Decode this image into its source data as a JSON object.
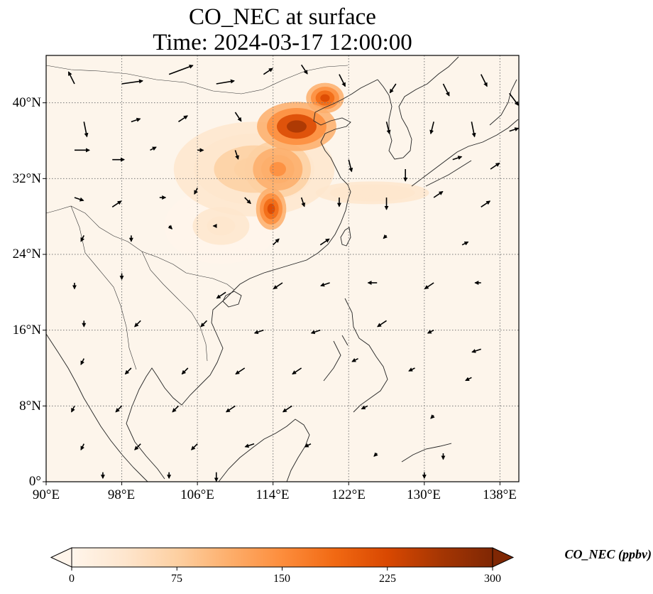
{
  "title": {
    "line1": "CO_NEC at surface",
    "line2": "Time: 2024-03-17 12:00:00"
  },
  "map": {
    "extent": {
      "lon_min": 90,
      "lon_max": 140,
      "lat_min": 0,
      "lat_max": 45
    },
    "gridlines": true,
    "y_ticks": [
      {
        "value": 0,
        "label": "0°"
      },
      {
        "value": 8,
        "label": "8°N"
      },
      {
        "value": 16,
        "label": "16°N"
      },
      {
        "value": 24,
        "label": "24°N"
      },
      {
        "value": 32,
        "label": "32°N"
      },
      {
        "value": 40,
        "label": "40°N"
      }
    ],
    "x_ticks": [
      {
        "value": 90,
        "label": "90°E"
      },
      {
        "value": 98,
        "label": "98°E"
      },
      {
        "value": 106,
        "label": "106°E"
      },
      {
        "value": 114,
        "label": "114°E"
      },
      {
        "value": 122,
        "label": "122°E"
      },
      {
        "value": 130,
        "label": "130°E"
      },
      {
        "value": 138,
        "label": "138°E"
      }
    ],
    "plumes": [
      {
        "lon": 116.5,
        "lat": 37.5,
        "value": 260,
        "rlon": 4.2,
        "rlat": 2.6
      },
      {
        "lon": 119.5,
        "lat": 40.5,
        "value": 240,
        "rlon": 2.0,
        "rlat": 1.6
      },
      {
        "lon": 113.8,
        "lat": 28.8,
        "value": 230,
        "rlon": 1.6,
        "rlat": 2.2
      },
      {
        "lon": 114.5,
        "lat": 33.0,
        "value": 160,
        "rlon": 3.5,
        "rlat": 3.0
      },
      {
        "lon": 112.0,
        "lat": 33.0,
        "value": 70,
        "rlon": 8.5,
        "rlat": 5.0
      },
      {
        "lon": 124.5,
        "lat": 30.5,
        "value": 55,
        "rlon": 6.0,
        "rlat": 1.2
      },
      {
        "lon": 108.5,
        "lat": 27.0,
        "value": 25,
        "rlon": 6.0,
        "rlat": 4.0
      }
    ],
    "wind": [
      {
        "lon": 93,
        "lat": 42,
        "u": -2,
        "v": 4
      },
      {
        "lon": 98,
        "lat": 42,
        "u": 7,
        "v": 1
      },
      {
        "lon": 103,
        "lat": 43,
        "u": 8,
        "v": 3
      },
      {
        "lon": 108,
        "lat": 42,
        "u": 6,
        "v": 1
      },
      {
        "lon": 113,
        "lat": 43,
        "u": 3,
        "v": 2
      },
      {
        "lon": 117,
        "lat": 44,
        "u": 2,
        "v": -3
      },
      {
        "lon": 121,
        "lat": 43,
        "u": 2,
        "v": -4
      },
      {
        "lon": 127,
        "lat": 42,
        "u": -2,
        "v": -3
      },
      {
        "lon": 132,
        "lat": 42,
        "u": 2,
        "v": -4
      },
      {
        "lon": 136,
        "lat": 43,
        "u": 2,
        "v": -4
      },
      {
        "lon": 139,
        "lat": 41,
        "u": 3,
        "v": -4
      },
      {
        "lon": 94,
        "lat": 38,
        "u": 1,
        "v": -5
      },
      {
        "lon": 99,
        "lat": 38,
        "u": 3,
        "v": 1
      },
      {
        "lon": 104,
        "lat": 38,
        "u": 3,
        "v": 2
      },
      {
        "lon": 110,
        "lat": 39,
        "u": 2,
        "v": -3
      },
      {
        "lon": 126,
        "lat": 38,
        "u": 1,
        "v": -4
      },
      {
        "lon": 131,
        "lat": 38,
        "u": -1,
        "v": -4
      },
      {
        "lon": 135,
        "lat": 38,
        "u": 1,
        "v": -5
      },
      {
        "lon": 139,
        "lat": 37,
        "u": 3,
        "v": 1
      },
      {
        "lon": 93,
        "lat": 35,
        "u": 5,
        "v": 0
      },
      {
        "lon": 97,
        "lat": 34,
        "u": 4,
        "v": 0
      },
      {
        "lon": 101,
        "lat": 35,
        "u": 2,
        "v": 1
      },
      {
        "lon": 106,
        "lat": 35,
        "u": 2,
        "v": 0
      },
      {
        "lon": 110,
        "lat": 35,
        "u": 1,
        "v": -3
      },
      {
        "lon": 122,
        "lat": 34,
        "u": 1,
        "v": -4
      },
      {
        "lon": 128,
        "lat": 33,
        "u": 0,
        "v": -4
      },
      {
        "lon": 133,
        "lat": 34,
        "u": 3,
        "v": 1
      },
      {
        "lon": 137,
        "lat": 33,
        "u": 3,
        "v": 2
      },
      {
        "lon": 93,
        "lat": 30,
        "u": 3,
        "v": -1
      },
      {
        "lon": 97,
        "lat": 29,
        "u": 3,
        "v": 2
      },
      {
        "lon": 102,
        "lat": 30,
        "u": 2,
        "v": 0
      },
      {
        "lon": 106,
        "lat": 31,
        "u": -1,
        "v": -2
      },
      {
        "lon": 111,
        "lat": 30,
        "u": 2,
        "v": -2
      },
      {
        "lon": 117,
        "lat": 30,
        "u": 1,
        "v": -3
      },
      {
        "lon": 121,
        "lat": 30,
        "u": 0,
        "v": -3
      },
      {
        "lon": 126,
        "lat": 30,
        "u": 0,
        "v": -4
      },
      {
        "lon": 131,
        "lat": 30,
        "u": 3,
        "v": 2
      },
      {
        "lon": 136,
        "lat": 29,
        "u": 3,
        "v": 2
      },
      {
        "lon": 94,
        "lat": 26,
        "u": -1,
        "v": -2
      },
      {
        "lon": 99,
        "lat": 26,
        "u": 0,
        "v": -2
      },
      {
        "lon": 103,
        "lat": 27,
        "u": 1,
        "v": -1
      },
      {
        "lon": 108,
        "lat": 27,
        "u": -1,
        "v": 0
      },
      {
        "lon": 114,
        "lat": 25,
        "u": 2,
        "v": 2
      },
      {
        "lon": 119,
        "lat": 25,
        "u": 3,
        "v": 2
      },
      {
        "lon": 126,
        "lat": 26,
        "u": -1,
        "v": -1
      },
      {
        "lon": 134,
        "lat": 25,
        "u": 2,
        "v": 1
      },
      {
        "lon": 93,
        "lat": 21,
        "u": 0,
        "v": -2
      },
      {
        "lon": 98,
        "lat": 22,
        "u": 0,
        "v": -2
      },
      {
        "lon": 109,
        "lat": 20,
        "u": -3,
        "v": -2
      },
      {
        "lon": 115,
        "lat": 21,
        "u": -3,
        "v": -2
      },
      {
        "lon": 120,
        "lat": 21,
        "u": -3,
        "v": -1
      },
      {
        "lon": 125,
        "lat": 21,
        "u": -3,
        "v": 0
      },
      {
        "lon": 131,
        "lat": 21,
        "u": -3,
        "v": -2
      },
      {
        "lon": 136,
        "lat": 21,
        "u": -2,
        "v": 0
      },
      {
        "lon": 94,
        "lat": 17,
        "u": 0,
        "v": -2
      },
      {
        "lon": 100,
        "lat": 17,
        "u": -2,
        "v": -2
      },
      {
        "lon": 107,
        "lat": 17,
        "u": -2,
        "v": -2
      },
      {
        "lon": 113,
        "lat": 16,
        "u": -3,
        "v": -1
      },
      {
        "lon": 119,
        "lat": 16,
        "u": -3,
        "v": -1
      },
      {
        "lon": 126,
        "lat": 17,
        "u": -3,
        "v": -2
      },
      {
        "lon": 131,
        "lat": 16,
        "u": -2,
        "v": -1
      },
      {
        "lon": 136,
        "lat": 14,
        "u": -3,
        "v": -1
      },
      {
        "lon": 94,
        "lat": 13,
        "u": -1,
        "v": -2
      },
      {
        "lon": 99,
        "lat": 12,
        "u": -2,
        "v": -2
      },
      {
        "lon": 105,
        "lat": 12,
        "u": -2,
        "v": -2
      },
      {
        "lon": 111,
        "lat": 12,
        "u": -3,
        "v": -2
      },
      {
        "lon": 117,
        "lat": 12,
        "u": -3,
        "v": -2
      },
      {
        "lon": 123,
        "lat": 13,
        "u": -2,
        "v": -1
      },
      {
        "lon": 129,
        "lat": 12,
        "u": -2,
        "v": -1
      },
      {
        "lon": 135,
        "lat": 11,
        "u": -2,
        "v": -1
      },
      {
        "lon": 93,
        "lat": 8,
        "u": -1,
        "v": -2
      },
      {
        "lon": 98,
        "lat": 8,
        "u": -2,
        "v": -2
      },
      {
        "lon": 104,
        "lat": 8,
        "u": -2,
        "v": -2
      },
      {
        "lon": 110,
        "lat": 8,
        "u": -3,
        "v": -2
      },
      {
        "lon": 116,
        "lat": 8,
        "u": -3,
        "v": -2
      },
      {
        "lon": 124,
        "lat": 8,
        "u": -2,
        "v": -1
      },
      {
        "lon": 131,
        "lat": 7,
        "u": -1,
        "v": -1
      },
      {
        "lon": 94,
        "lat": 4,
        "u": -1,
        "v": -2
      },
      {
        "lon": 100,
        "lat": 4,
        "u": -2,
        "v": -2
      },
      {
        "lon": 106,
        "lat": 4,
        "u": -2,
        "v": -2
      },
      {
        "lon": 112,
        "lat": 4,
        "u": -3,
        "v": -1
      },
      {
        "lon": 118,
        "lat": 4,
        "u": -2,
        "v": -1
      },
      {
        "lon": 125,
        "lat": 3,
        "u": -1,
        "v": -1
      },
      {
        "lon": 132,
        "lat": 3,
        "u": 0,
        "v": -2
      },
      {
        "lon": 96,
        "lat": 1,
        "u": 0,
        "v": -2
      },
      {
        "lon": 103,
        "lat": 1,
        "u": 0,
        "v": -2
      },
      {
        "lon": 108,
        "lat": 1,
        "u": 0,
        "v": -3
      },
      {
        "lon": 130,
        "lat": 1,
        "u": 0,
        "v": -2
      }
    ]
  },
  "colorbar": {
    "label": "CO_NEC (ppbv)",
    "min": 0,
    "max": 300,
    "ticks": [
      {
        "value": 0,
        "label": "0"
      },
      {
        "value": 75,
        "label": "75"
      },
      {
        "value": 150,
        "label": "150"
      },
      {
        "value": 225,
        "label": "225"
      },
      {
        "value": 300,
        "label": "300"
      }
    ],
    "extend": "both",
    "colormap": [
      "#fff5eb",
      "#fee6ce",
      "#fdd0a2",
      "#fdae6b",
      "#fd8d3c",
      "#f16913",
      "#d94801",
      "#a63603",
      "#7f2704"
    ]
  }
}
